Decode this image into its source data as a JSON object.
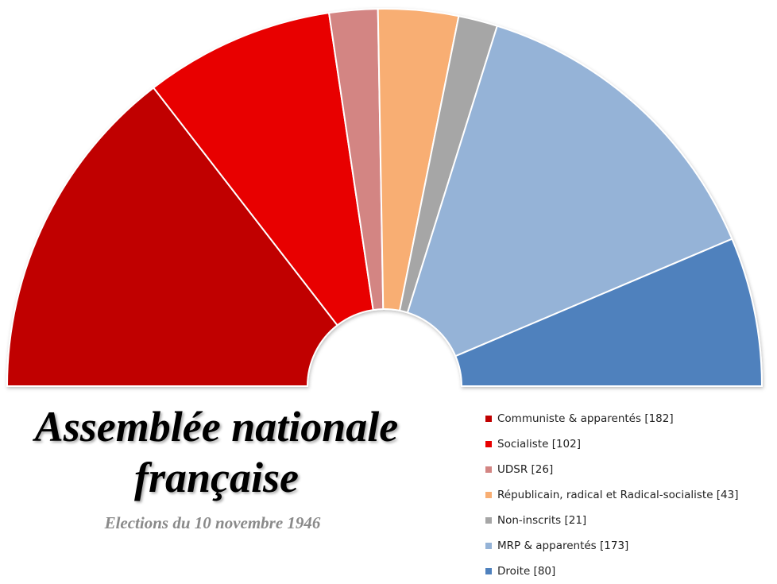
{
  "chart_data": {
    "type": "pie",
    "shape": "semicircle",
    "title_lines": [
      "Assemblée nationale",
      "française"
    ],
    "subtitle": "Elections du 10 novembre 1946",
    "legend_position": "bottom-right",
    "series": [
      {
        "name": "Communiste & apparentés",
        "value": 182,
        "color": "#c00000",
        "legend": "Communiste & apparentés [182]"
      },
      {
        "name": "Socialiste",
        "value": 102,
        "color": "#e80000",
        "legend": "Socialiste [102]"
      },
      {
        "name": "UDSR",
        "value": 26,
        "color": "#d38583",
        "legend": "UDSR [26]"
      },
      {
        "name": "Républicain, radical et Radical-socialiste",
        "value": 43,
        "color": "#f8ae73",
        "legend": "Républicain, radical et Radical-socialiste [43]"
      },
      {
        "name": "Non-inscrits",
        "value": 21,
        "color": "#a6a6a6",
        "legend": "Non-inscrits [21]"
      },
      {
        "name": "MRP & apparentés",
        "value": 173,
        "color": "#95b3d7",
        "legend": "MRP & apparentés [173]"
      },
      {
        "name": "Droite",
        "value": 80,
        "color": "#4f81bd",
        "legend": "Droite [80]"
      }
    ]
  }
}
